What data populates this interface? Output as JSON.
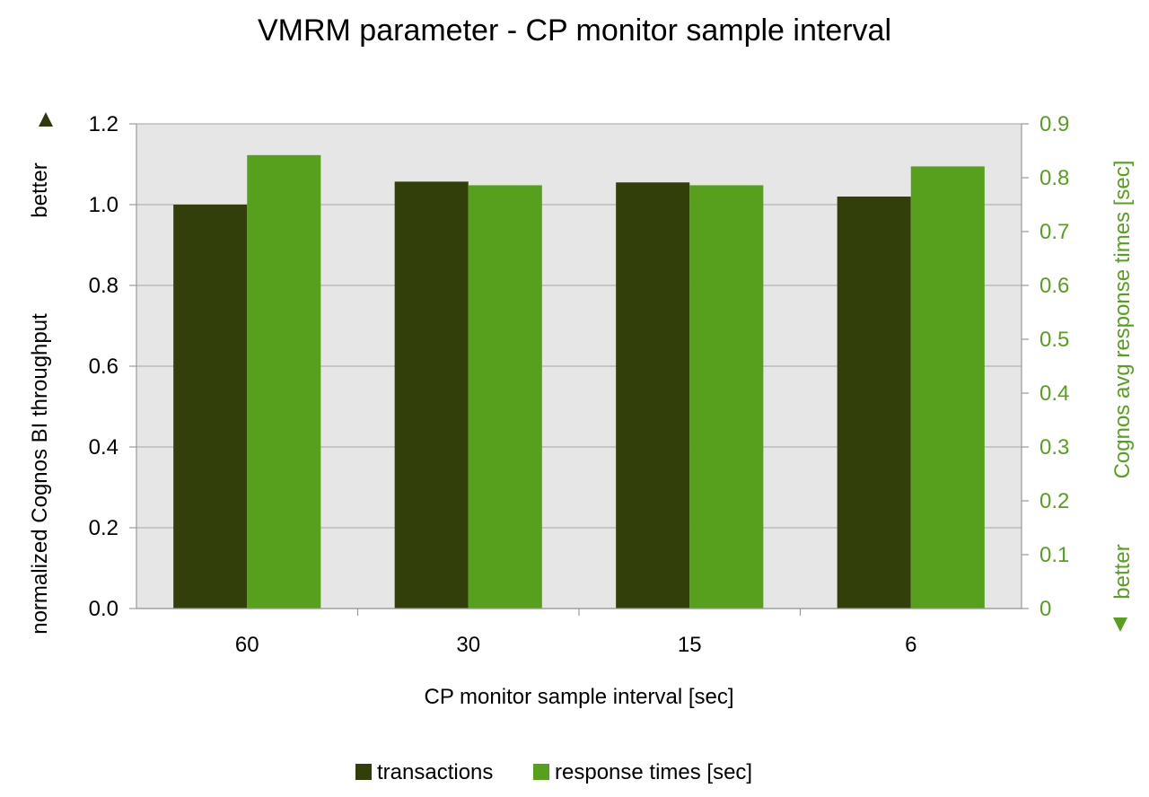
{
  "chart_data": {
    "type": "bar",
    "title": "VMRM parameter - CP monitor sample interval",
    "xlabel": "CP monitor sample interval [sec]",
    "ylabel_left": "normalized Cognos BI throughput",
    "ylabel_left_annotation": "better",
    "ylabel_right": "Cognos avg response times [sec]",
    "ylabel_right_annotation": "better",
    "categories": [
      "60",
      "30",
      "15",
      "6"
    ],
    "ylim_left": [
      0,
      1.2
    ],
    "ylim_right": [
      0,
      0.9
    ],
    "left_ticks": [
      "0.0",
      "0.2",
      "0.4",
      "0.6",
      "0.8",
      "1.0",
      "1.2"
    ],
    "right_ticks": [
      "0",
      "0.1",
      "0.2",
      "0.3",
      "0.4",
      "0.5",
      "0.6",
      "0.7",
      "0.8",
      "0.9"
    ],
    "grid": true,
    "legend_position": "bottom",
    "series": [
      {
        "name": "transactions",
        "axis": "left",
        "color": "#333f0a",
        "values": [
          1.0,
          1.057,
          1.055,
          1.02
        ]
      },
      {
        "name": "response times [sec]",
        "axis": "right",
        "color": "#56a01e",
        "values": [
          0.842,
          0.786,
          0.786,
          0.821
        ]
      }
    ],
    "colors": {
      "plot_background": "#e6e6e6",
      "gridline": "#b3b3b3",
      "left_axis_text": "#000000",
      "right_axis_text": "#56a01e"
    }
  }
}
